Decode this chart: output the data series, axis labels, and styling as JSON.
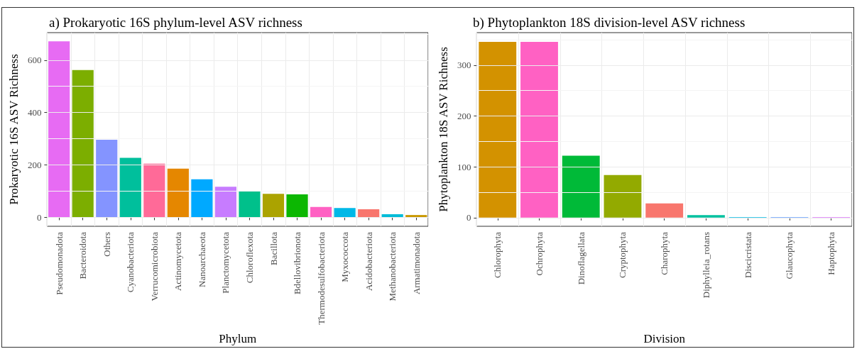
{
  "chart_data": [
    {
      "type": "bar",
      "title": "a) Prokaryotic 16S phylum-level ASV richness",
      "xlabel": "Phylum",
      "ylabel": "Prokaryotic 16S ASV Richness",
      "categories": [
        "Pseudomonadota",
        "Bacteroidota",
        "Others",
        "Cyanobacteriota",
        "Verrucomicrobiota",
        "Actinomycetota",
        "Nanoarchaeota",
        "Planctomycetota",
        "Chloroflexota",
        "Bacillota",
        "Bdellovibrionota",
        "Thermodesulfobacteriota",
        "Myxococcota",
        "Acidobacteriota",
        "Methanobacteriota",
        "Armatimonadota"
      ],
      "values": [
        672,
        562,
        296,
        227,
        205,
        186,
        145,
        117,
        99,
        90,
        88,
        40,
        36,
        31,
        12,
        9
      ],
      "colors": [
        "#e76bf3",
        "#7cae00",
        "#8494ff",
        "#00bf9c",
        "#ff6a98",
        "#e58700",
        "#00a9ff",
        "#c77cff",
        "#00c08b",
        "#aba300",
        "#0cb702",
        "#ff61c3",
        "#00b8e7",
        "#f8766d",
        "#00bcd8",
        "#c99800"
      ],
      "ylim": [
        -34,
        705
      ],
      "yticks": [
        0,
        200,
        400,
        600
      ],
      "grid": true
    },
    {
      "type": "bar",
      "title": "b) Phytoplankton 18S division-level ASV richness",
      "xlabel": "Division",
      "ylabel": "Phytoplankton 18S ASV Richness",
      "categories": [
        "Chlorophyta",
        "Ochrophyta",
        "Dinoflagellata",
        "Cryptophyta",
        "Charophyta",
        "Diphylleia_rotans",
        "Discicristata",
        "Glaucophyta",
        "Haptophyta"
      ],
      "values": [
        346,
        346,
        122,
        84,
        28,
        5,
        1,
        1,
        1
      ],
      "colors": [
        "#d39200",
        "#ff61c3",
        "#00ba38",
        "#93aa00",
        "#f8766d",
        "#00c19f",
        "#00b9e3",
        "#619cff",
        "#db72fb"
      ],
      "ylim": [
        -17,
        364
      ],
      "yticks": [
        0,
        100,
        200,
        300
      ],
      "grid": true
    }
  ]
}
